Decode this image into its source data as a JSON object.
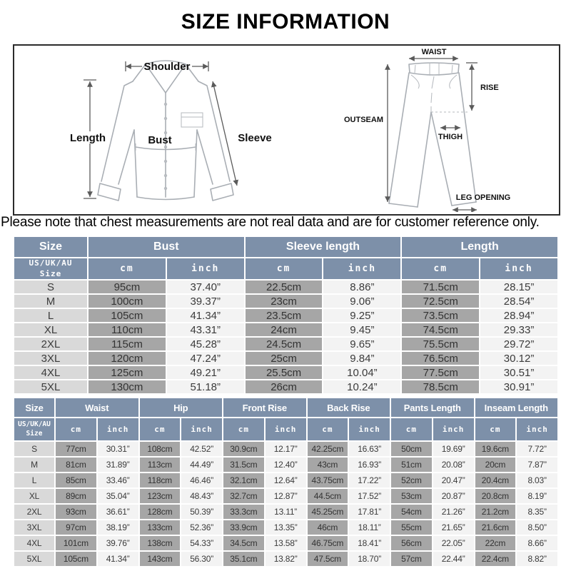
{
  "title": "SIZE INFORMATION",
  "note": "Please note that chest measurements are not real data and are for customer reference only.",
  "colors": {
    "header_bg": "#7d90a9",
    "header_text": "#ffffff",
    "size_cell_bg": "#d9d9d9",
    "cm_cell_bg": "#a6a6a6",
    "inch_cell_bg": "#f3f3f3",
    "body_text": "#3b3b3b"
  },
  "diagram": {
    "shirt_labels": {
      "shoulder": "Shoulder",
      "length": "Length",
      "bust": "Bust",
      "sleeve": "Sleeve"
    },
    "pants_labels": {
      "waist": "WAIST",
      "rise": "RISE",
      "outseam": "OUTSEAM",
      "thigh": "THIGH",
      "leg_opening": "LEG OPENING"
    }
  },
  "tops_table": {
    "group_headers": [
      "Size",
      "Bust",
      "Sleeve length",
      "Length"
    ],
    "size_subheader": "US/UK/AU\nSize",
    "units": [
      "cm",
      "inch"
    ],
    "rows": [
      {
        "size": "S",
        "values": [
          "95cm",
          "37.40”",
          "22.5cm",
          "8.86”",
          "71.5cm",
          "28.15”"
        ]
      },
      {
        "size": "M",
        "values": [
          "100cm",
          "39.37”",
          "23cm",
          "9.06”",
          "72.5cm",
          "28.54”"
        ]
      },
      {
        "size": "L",
        "values": [
          "105cm",
          "41.34”",
          "23.5cm",
          "9.25”",
          "73.5cm",
          "28.94”"
        ]
      },
      {
        "size": "XL",
        "values": [
          "110cm",
          "43.31”",
          "24cm",
          "9.45”",
          "74.5cm",
          "29.33”"
        ]
      },
      {
        "size": "2XL",
        "values": [
          "115cm",
          "45.28”",
          "24.5cm",
          "9.65”",
          "75.5cm",
          "29.72”"
        ]
      },
      {
        "size": "3XL",
        "values": [
          "120cm",
          "47.24”",
          "25cm",
          "9.84”",
          "76.5cm",
          "30.12”"
        ]
      },
      {
        "size": "4XL",
        "values": [
          "125cm",
          "49.21”",
          "25.5cm",
          "10.04”",
          "77.5cm",
          "30.51”"
        ]
      },
      {
        "size": "5XL",
        "values": [
          "130cm",
          "51.18”",
          "26cm",
          "10.24”",
          "78.5cm",
          "30.91”"
        ]
      }
    ]
  },
  "bottoms_table": {
    "group_headers": [
      "Size",
      "Waist",
      "Hip",
      "Front Rise",
      "Back Rise",
      "Pants Length",
      "Inseam Length"
    ],
    "size_subheader": "US/UK/AU\nSize",
    "units": [
      "cm",
      "inch"
    ],
    "rows": [
      {
        "size": "S",
        "values": [
          "77cm",
          "30.31”",
          "108cm",
          "42.52”",
          "30.9cm",
          "12.17”",
          "42.25cm",
          "16.63”",
          "50cm",
          "19.69”",
          "19.6cm",
          "7.72”"
        ]
      },
      {
        "size": "M",
        "values": [
          "81cm",
          "31.89”",
          "113cm",
          "44.49”",
          "31.5cm",
          "12.40”",
          "43cm",
          "16.93”",
          "51cm",
          "20.08”",
          "20cm",
          "7.87”"
        ]
      },
      {
        "size": "L",
        "values": [
          "85cm",
          "33.46”",
          "118cm",
          "46.46”",
          "32.1cm",
          "12.64”",
          "43.75cm",
          "17.22”",
          "52cm",
          "20.47”",
          "20.4cm",
          "8.03”"
        ]
      },
      {
        "size": "XL",
        "values": [
          "89cm",
          "35.04”",
          "123cm",
          "48.43”",
          "32.7cm",
          "12.87”",
          "44.5cm",
          "17.52”",
          "53cm",
          "20.87”",
          "20.8cm",
          "8.19”"
        ]
      },
      {
        "size": "2XL",
        "values": [
          "93cm",
          "36.61”",
          "128cm",
          "50.39”",
          "33.3cm",
          "13.11”",
          "45.25cm",
          "17.81”",
          "54cm",
          "21.26”",
          "21.2cm",
          "8.35”"
        ]
      },
      {
        "size": "3XL",
        "values": [
          "97cm",
          "38.19”",
          "133cm",
          "52.36”",
          "33.9cm",
          "13.35”",
          "46cm",
          "18.11”",
          "55cm",
          "21.65”",
          "21.6cm",
          "8.50”"
        ]
      },
      {
        "size": "4XL",
        "values": [
          "101cm",
          "39.76”",
          "138cm",
          "54.33”",
          "34.5cm",
          "13.58”",
          "46.75cm",
          "18.41”",
          "56cm",
          "22.05”",
          "22cm",
          "8.66”"
        ]
      },
      {
        "size": "5XL",
        "values": [
          "105cm",
          "41.34”",
          "143cm",
          "56.30”",
          "35.1cm",
          "13.82”",
          "47.5cm",
          "18.70”",
          "57cm",
          "22.44”",
          "22.4cm",
          "8.82”"
        ]
      }
    ]
  }
}
